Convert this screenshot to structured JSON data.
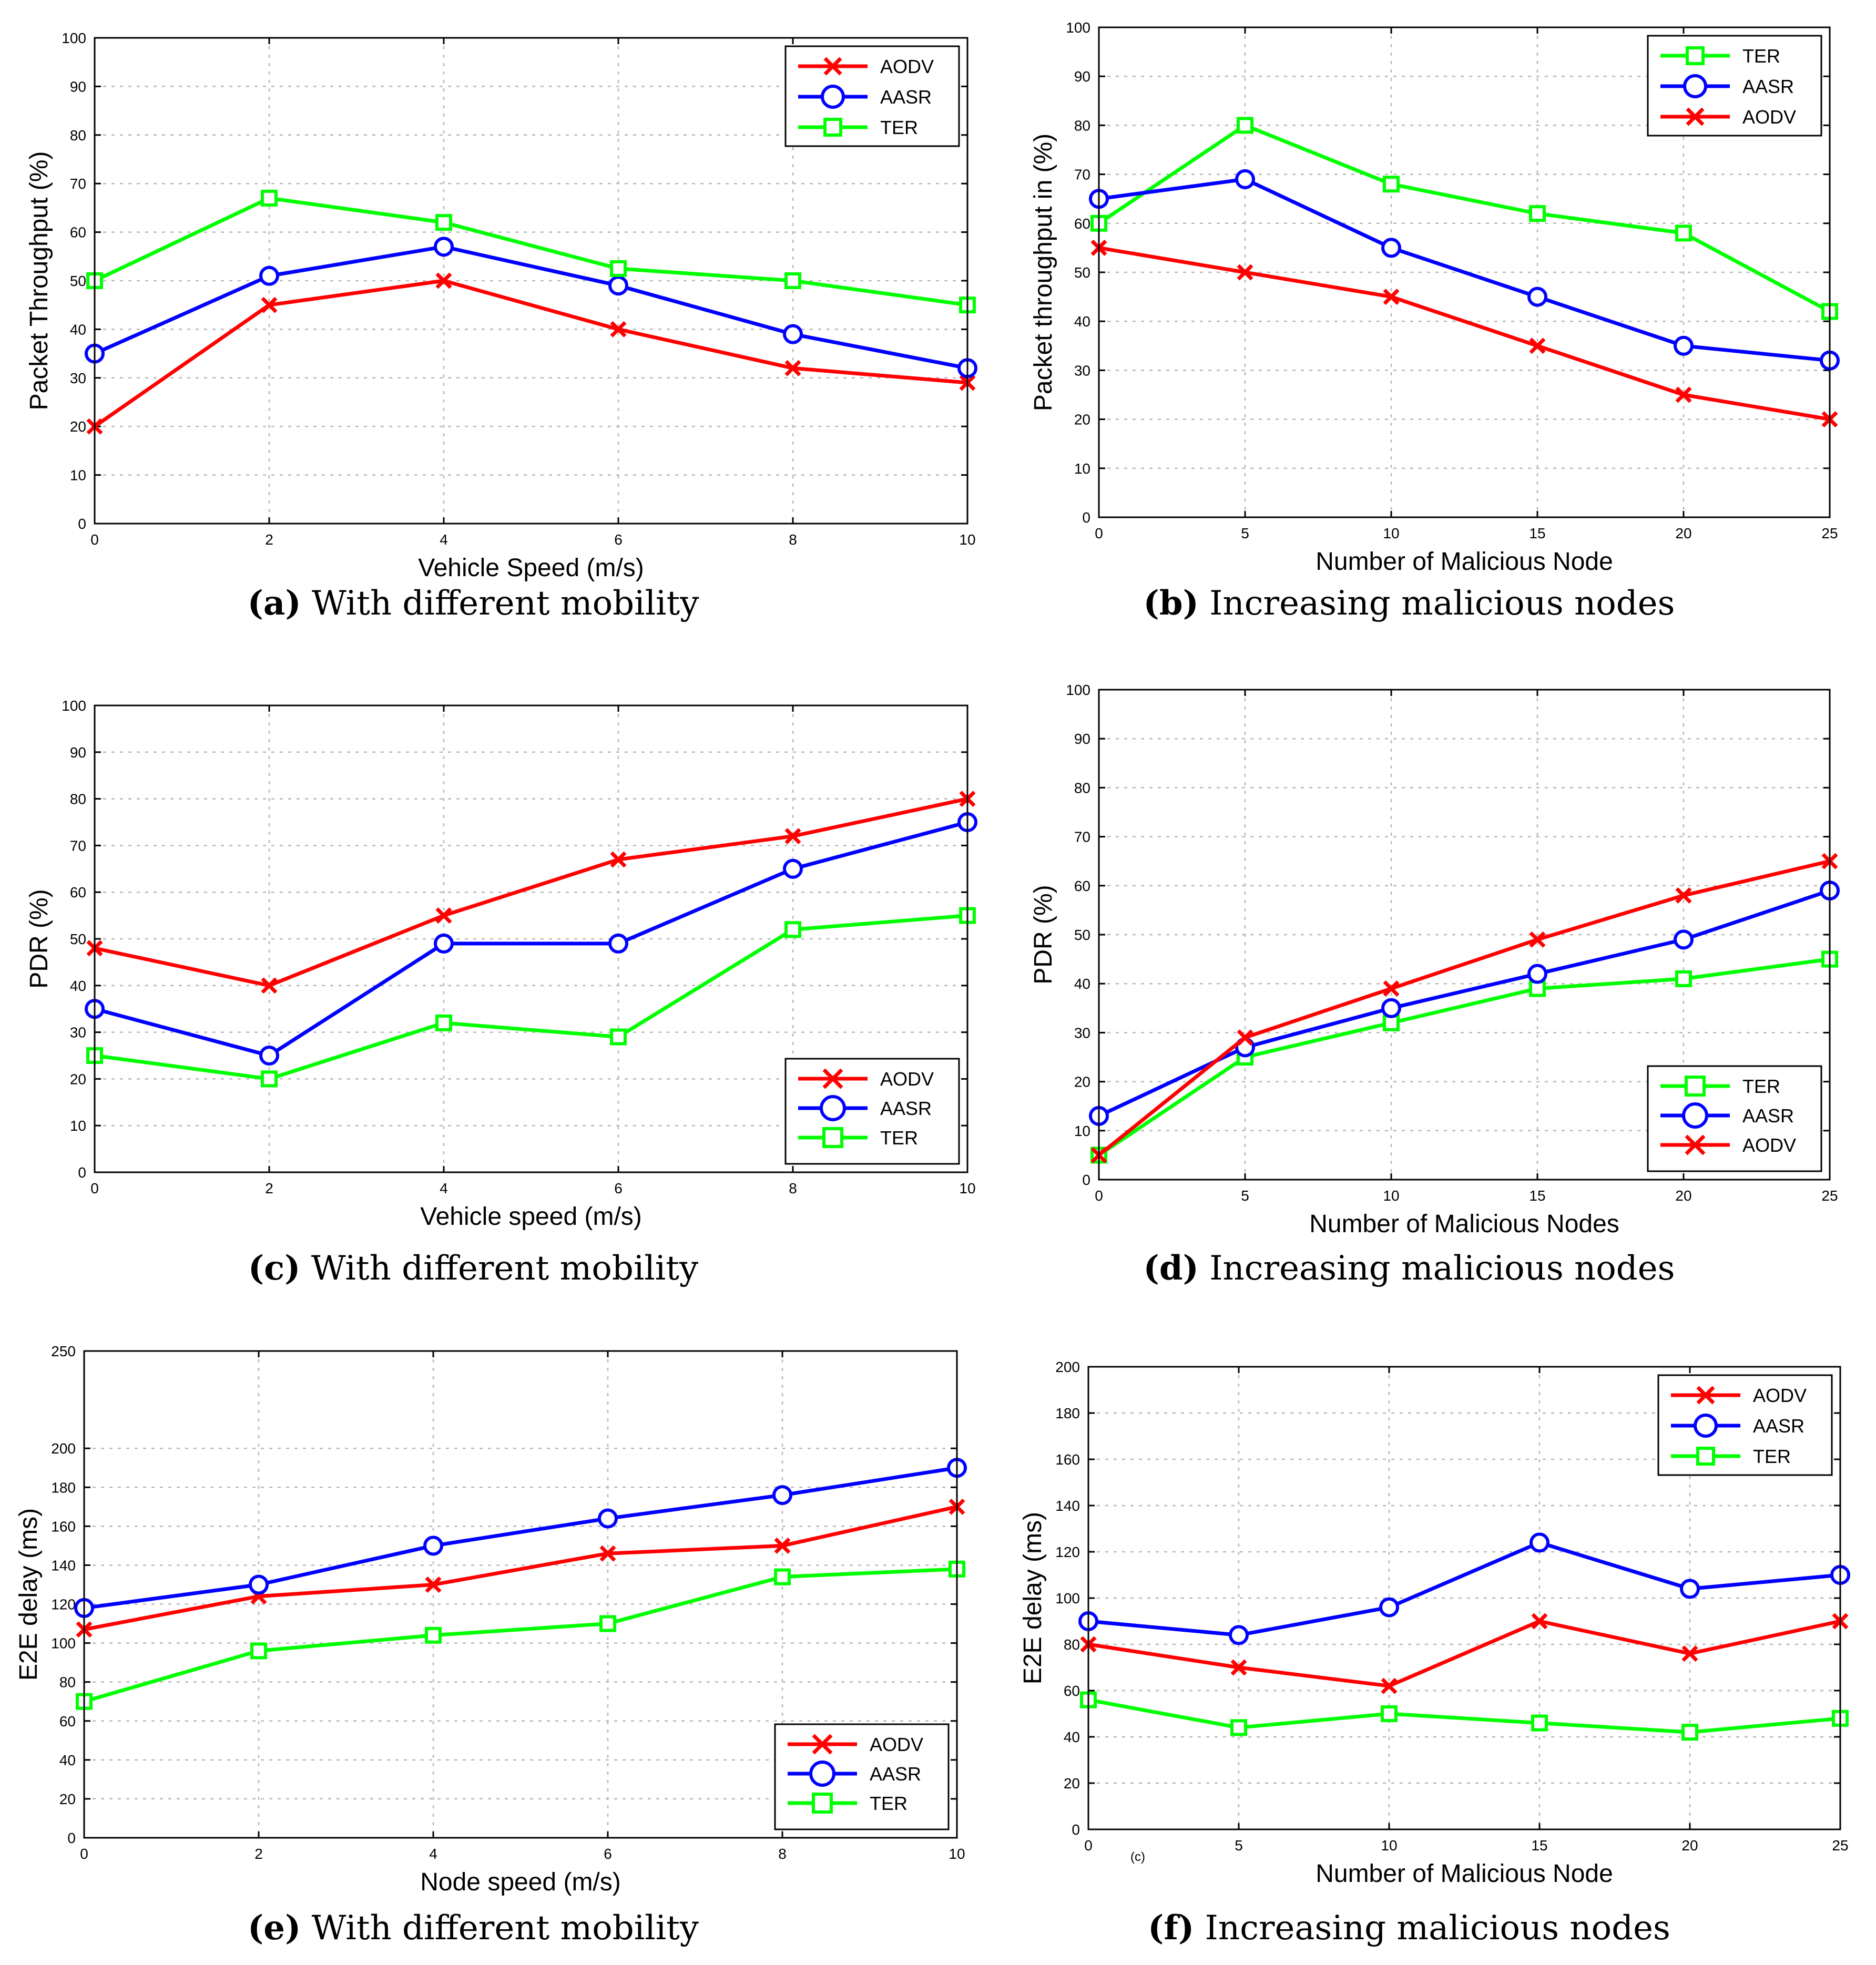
{
  "colors": {
    "AODV": "#ff0000",
    "AASR": "#0000ff",
    "TER": "#00ff00"
  },
  "markers": {
    "AODV": "x-mark",
    "AASR": "circle-mark",
    "TER": "square-mark"
  },
  "captions": [
    {
      "letter": "(a)",
      "text": "With different mobility"
    },
    {
      "letter": "(b)",
      "text": "Increasing malicious nodes"
    },
    {
      "letter": "(c)",
      "text": "With different mobility"
    },
    {
      "letter": "(d)",
      "text": "Increasing malicious nodes"
    },
    {
      "letter": "(e)",
      "text": "With different mobility"
    },
    {
      "letter": "(f)",
      "text": "Increasing malicious nodes"
    }
  ],
  "chart_data": [
    {
      "id": "a",
      "type": "line",
      "xlabel": "Vehicle Speed (m/s)",
      "ylabel": "Packet Throughput (%)",
      "xlim": [
        0,
        10
      ],
      "ylim": [
        0,
        100
      ],
      "xticks": [
        0,
        2,
        4,
        6,
        8,
        10
      ],
      "yticks": [
        0,
        10,
        20,
        30,
        40,
        50,
        60,
        70,
        80,
        90,
        100
      ],
      "grid": true,
      "legend_position": "top-right",
      "x": [
        0,
        2,
        4,
        6,
        8,
        10
      ],
      "series": [
        {
          "name": "AODV",
          "values": [
            20,
            45,
            50,
            40,
            32,
            29
          ]
        },
        {
          "name": "AASR",
          "values": [
            35,
            51,
            57,
            49,
            39,
            32
          ]
        },
        {
          "name": "TER",
          "values": [
            50,
            67,
            62,
            52.5,
            50,
            45
          ]
        }
      ]
    },
    {
      "id": "b",
      "type": "line",
      "xlabel": "Number of Malicious Node",
      "ylabel": "Packet throughput in (%)",
      "xlim": [
        0,
        25
      ],
      "ylim": [
        0,
        100
      ],
      "xticks": [
        0,
        5,
        10,
        15,
        20,
        25
      ],
      "yticks": [
        0,
        10,
        20,
        30,
        40,
        50,
        60,
        70,
        80,
        90,
        100
      ],
      "grid": true,
      "legend_position": "top-right",
      "x": [
        0,
        5,
        10,
        15,
        20,
        25
      ],
      "series": [
        {
          "name": "TER",
          "values": [
            60,
            80,
            68,
            62,
            58,
            42
          ]
        },
        {
          "name": "AASR",
          "values": [
            65,
            69,
            55,
            45,
            35,
            32
          ]
        },
        {
          "name": "AODV",
          "values": [
            55,
            50,
            45,
            35,
            25,
            20
          ]
        }
      ]
    },
    {
      "id": "c",
      "type": "line",
      "xlabel": "Vehicle speed (m/s)",
      "ylabel": "PDR (%)",
      "xlim": [
        0,
        10
      ],
      "ylim": [
        0,
        100
      ],
      "xticks": [
        0,
        2,
        4,
        6,
        8,
        10
      ],
      "yticks": [
        0,
        10,
        20,
        30,
        40,
        50,
        60,
        70,
        80,
        90,
        100
      ],
      "grid": true,
      "legend_position": "bottom-right",
      "x": [
        0,
        2,
        4,
        6,
        8,
        10
      ],
      "series": [
        {
          "name": "AODV",
          "values": [
            48,
            40,
            55,
            67,
            72,
            80
          ]
        },
        {
          "name": "AASR",
          "values": [
            35,
            25,
            49,
            49,
            65,
            75
          ]
        },
        {
          "name": "TER",
          "values": [
            25,
            20,
            32,
            29,
            52,
            55
          ]
        }
      ]
    },
    {
      "id": "d",
      "type": "line",
      "xlabel": "Number of Malicious Nodes",
      "ylabel": "PDR (%)",
      "xlim": [
        0,
        25
      ],
      "ylim": [
        0,
        100
      ],
      "xticks": [
        0,
        5,
        10,
        15,
        20,
        25
      ],
      "yticks": [
        0,
        10,
        20,
        30,
        40,
        50,
        60,
        70,
        80,
        90,
        100
      ],
      "grid": true,
      "legend_position": "bottom-right",
      "x": [
        0,
        5,
        10,
        15,
        20,
        25
      ],
      "series": [
        {
          "name": "TER",
          "values": [
            5,
            25,
            32,
            39,
            41,
            45
          ]
        },
        {
          "name": "AASR",
          "values": [
            13,
            27,
            35,
            42,
            49,
            59
          ]
        },
        {
          "name": "AODV",
          "values": [
            5,
            29,
            39,
            49,
            58,
            65
          ]
        }
      ]
    },
    {
      "id": "e",
      "type": "line",
      "xlabel": "Node speed (m/s)",
      "ylabel": "E2E delay (ms)",
      "xlim": [
        0,
        10
      ],
      "ylim": [
        0,
        250
      ],
      "xticks": [
        0,
        2,
        4,
        6,
        8,
        10
      ],
      "yticks": [
        0,
        20,
        40,
        60,
        80,
        100,
        120,
        140,
        160,
        180,
        200,
        250
      ],
      "grid": true,
      "legend_position": "bottom-right",
      "x": [
        0,
        2,
        4,
        6,
        8,
        10
      ],
      "series": [
        {
          "name": "AODV",
          "values": [
            107,
            124,
            130,
            146,
            150,
            170
          ]
        },
        {
          "name": "AASR",
          "values": [
            118,
            130,
            150,
            164,
            176,
            190
          ]
        },
        {
          "name": "TER",
          "values": [
            70,
            96,
            104,
            110,
            134,
            138
          ]
        }
      ]
    },
    {
      "id": "f",
      "type": "line",
      "xlabel": "Number of Malicious Node",
      "ylabel": "E2E delay (ms)",
      "xlim": [
        0,
        25
      ],
      "ylim": [
        0,
        200
      ],
      "xticks": [
        0,
        5,
        10,
        15,
        20,
        25
      ],
      "yticks": [
        0,
        20,
        40,
        60,
        80,
        100,
        120,
        140,
        160,
        180,
        200
      ],
      "grid": true,
      "legend_position": "top-right",
      "annotation": "(c)",
      "x": [
        0,
        5,
        10,
        15,
        20,
        25
      ],
      "series": [
        {
          "name": "AODV",
          "values": [
            80,
            70,
            62,
            90,
            76,
            90
          ]
        },
        {
          "name": "AASR",
          "values": [
            90,
            84,
            96,
            124,
            104,
            110
          ]
        },
        {
          "name": "TER",
          "values": [
            56,
            44,
            50,
            46,
            42,
            48
          ]
        }
      ]
    }
  ]
}
